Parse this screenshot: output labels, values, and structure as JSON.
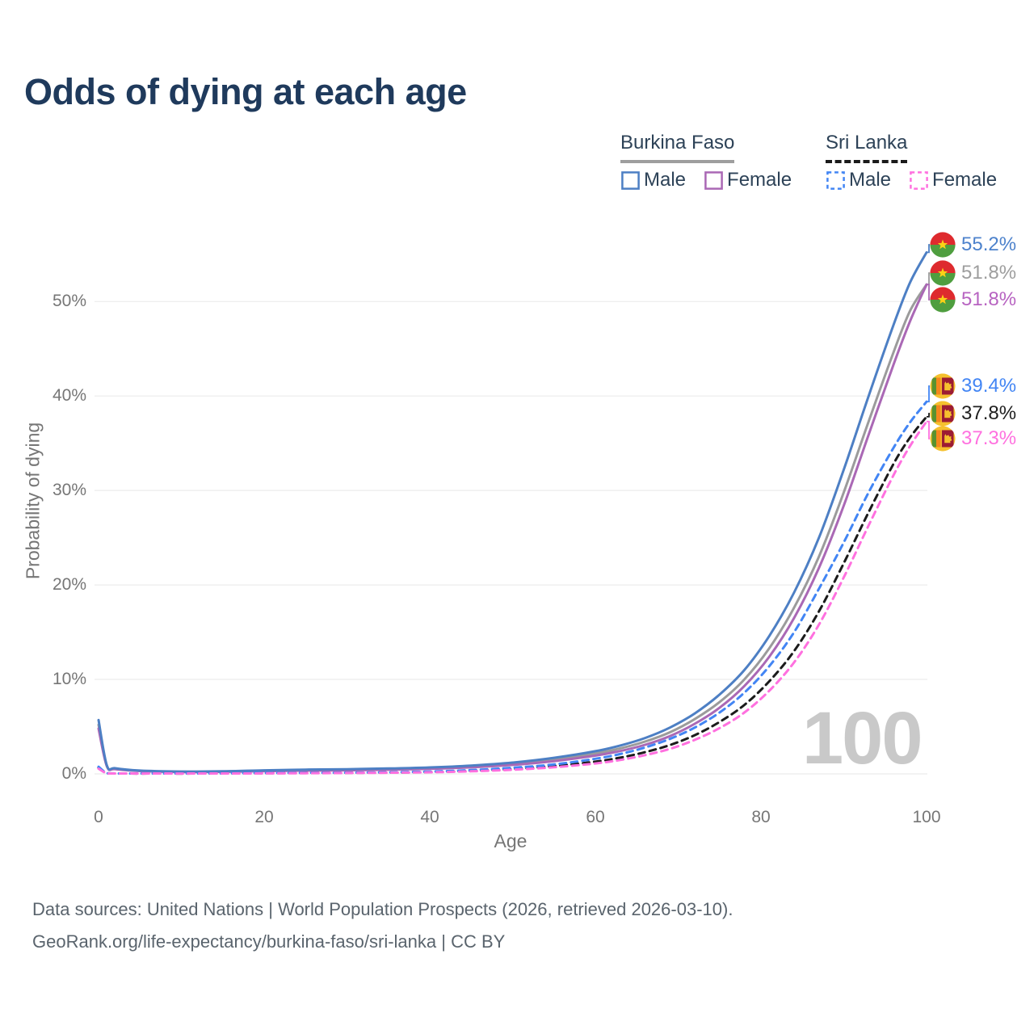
{
  "header": {
    "title": "Odds of dying at each age"
  },
  "legend": {
    "groups": [
      {
        "name": "Burkina Faso",
        "underline_style": "solid",
        "underline_color": "#9e9e9e",
        "items": [
          {
            "label": "Male",
            "color": "#4d7fc4",
            "dashed": false
          },
          {
            "label": "Female",
            "color": "#aa68b5",
            "dashed": false
          }
        ]
      },
      {
        "name": "Sri Lanka",
        "underline_style": "dashed",
        "underline_color": "#1a1a1a",
        "items": [
          {
            "label": "Male",
            "color": "#4285f4",
            "dashed": true
          },
          {
            "label": "Female",
            "color": "#ff70df",
            "dashed": true
          }
        ]
      }
    ]
  },
  "chart_data": {
    "type": "line",
    "title": "Odds of dying at each age",
    "xlabel": "Age",
    "ylabel": "Probability of dying",
    "x_ticks": [
      "0",
      "20",
      "40",
      "60",
      "80",
      "100"
    ],
    "x_tick_values": [
      0,
      20,
      40,
      60,
      80,
      100
    ],
    "y_ticks": [
      "0%",
      "10%",
      "20%",
      "30%",
      "40%",
      "50%"
    ],
    "y_tick_values": [
      0,
      10,
      20,
      30,
      40,
      50
    ],
    "xlim": [
      0,
      100
    ],
    "ylim_pct": [
      0,
      57
    ],
    "grid": "horizontal",
    "gridline_color": "#ececec",
    "legend_position": "top-right",
    "watermark": "100",
    "ages": [
      0,
      1,
      2,
      5,
      10,
      15,
      20,
      25,
      30,
      35,
      40,
      45,
      50,
      55,
      60,
      63,
      66,
      69,
      72,
      75,
      78,
      81,
      84,
      87,
      90,
      93,
      96,
      98,
      100
    ],
    "series": [
      {
        "name": "Burkina Faso Male",
        "country": "Burkina Faso",
        "sex": "Male",
        "color": "#4d7fc4",
        "label_color": "#4d82cc",
        "dashed": false,
        "flag": "bf",
        "end_label": "55.2%",
        "values": [
          5.7,
          0.9,
          0.6,
          0.35,
          0.25,
          0.28,
          0.38,
          0.45,
          0.5,
          0.57,
          0.68,
          0.88,
          1.2,
          1.7,
          2.4,
          3.0,
          3.8,
          4.9,
          6.4,
          8.4,
          11.0,
          14.6,
          19.2,
          25.0,
          32.2,
          40.0,
          47.5,
          52.0,
          55.2
        ]
      },
      {
        "name": "Burkina Faso Total",
        "country": "Burkina Faso",
        "sex": "Total",
        "color": "#9b9b9b",
        "label_color": "#9e9e9e",
        "dashed": false,
        "flag": "bf",
        "end_label": "51.8%",
        "values": [
          5.2,
          0.85,
          0.55,
          0.32,
          0.22,
          0.25,
          0.34,
          0.4,
          0.45,
          0.51,
          0.61,
          0.79,
          1.08,
          1.53,
          2.16,
          2.7,
          3.42,
          4.4,
          5.8,
          7.6,
          10.0,
          13.3,
          17.6,
          23.0,
          29.8,
          37.3,
          44.6,
          49.0,
          51.8
        ]
      },
      {
        "name": "Burkina Faso Female",
        "country": "Burkina Faso",
        "sex": "Female",
        "color": "#aa68b5",
        "label_color": "#b763c1",
        "dashed": false,
        "flag": "bf",
        "end_label": "51.8%",
        "values": [
          4.8,
          0.8,
          0.5,
          0.3,
          0.2,
          0.22,
          0.29,
          0.34,
          0.38,
          0.44,
          0.53,
          0.69,
          0.95,
          1.35,
          1.93,
          2.42,
          3.08,
          4.0,
          5.3,
          7.0,
          9.3,
          12.4,
          16.5,
          21.8,
          28.4,
          35.9,
          43.3,
          47.9,
          51.8
        ]
      },
      {
        "name": "Sri Lanka Male",
        "country": "Sri Lanka",
        "sex": "Male",
        "color": "#4285f4",
        "label_color": "#4285f4",
        "dashed": true,
        "flag": "lk",
        "end_label": "39.4%",
        "values": [
          0.75,
          0.07,
          0.05,
          0.04,
          0.04,
          0.06,
          0.09,
          0.11,
          0.13,
          0.17,
          0.25,
          0.4,
          0.65,
          1.0,
          1.6,
          2.1,
          2.8,
          3.7,
          4.9,
          6.5,
          8.6,
          11.4,
          15.0,
          19.6,
          24.5,
          29.8,
          34.5,
          37.2,
          39.4
        ]
      },
      {
        "name": "Sri Lanka Total",
        "country": "Sri Lanka",
        "sex": "Total",
        "color": "#1b1b1b",
        "label_color": "#1f1f1f",
        "dashed": true,
        "flag": "lk",
        "end_label": "37.8%",
        "values": [
          0.65,
          0.06,
          0.04,
          0.03,
          0.03,
          0.05,
          0.07,
          0.09,
          0.11,
          0.14,
          0.2,
          0.32,
          0.52,
          0.82,
          1.3,
          1.72,
          2.3,
          3.05,
          4.1,
          5.5,
          7.3,
          9.8,
          13.0,
          17.2,
          22.3,
          27.7,
          32.8,
          35.6,
          37.8
        ]
      },
      {
        "name": "Sri Lanka Female",
        "country": "Sri Lanka",
        "sex": "Female",
        "color": "#ff70df",
        "label_color": "#ff70df",
        "dashed": true,
        "flag": "lk",
        "end_label": "37.3%",
        "values": [
          0.55,
          0.05,
          0.04,
          0.03,
          0.03,
          0.04,
          0.05,
          0.07,
          0.09,
          0.12,
          0.17,
          0.27,
          0.44,
          0.7,
          1.1,
          1.47,
          1.98,
          2.65,
          3.6,
          4.85,
          6.5,
          8.8,
          11.8,
          15.8,
          20.8,
          26.3,
          31.6,
          34.7,
          37.3
        ]
      }
    ]
  },
  "flags": {
    "burkina_faso": {
      "red": "#de2a2e",
      "green": "#4f9e3f",
      "star": "#fcd116"
    },
    "sri_lanka": {
      "gold": "#f5c12e",
      "maroon": "#9c1c34",
      "green": "#58922f",
      "orange": "#f5871d"
    }
  },
  "footer": {
    "line1": "Data sources: United Nations | World Population Prospects (2026, retrieved 2026-03-10).",
    "line2": "GeoRank.org/life-expectancy/burkina-faso/sri-lanka | CC BY"
  }
}
